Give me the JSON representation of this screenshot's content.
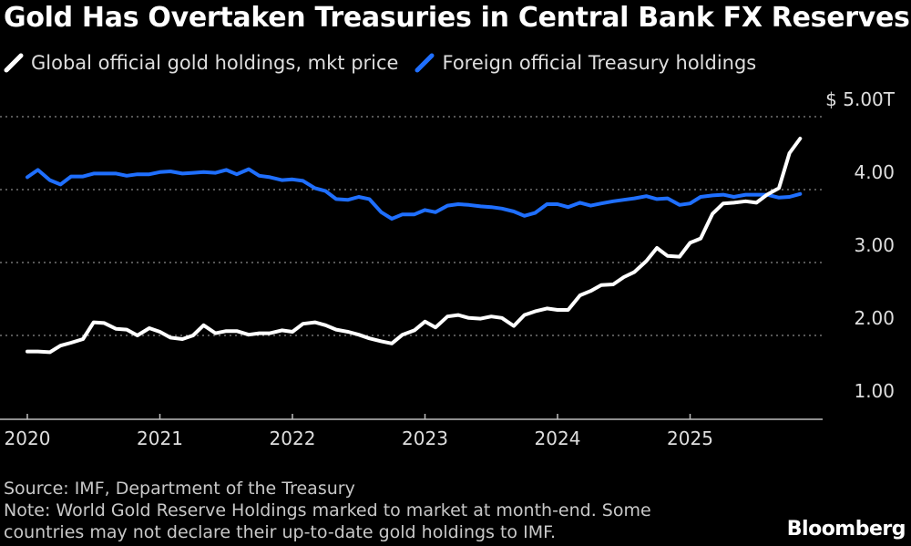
{
  "title": "Gold Has Overtaken Treasuries in Central Bank FX Reserves",
  "legend": [
    {
      "label": "Global official gold holdings, mkt price",
      "color": "#ffffff"
    },
    {
      "label": "Foreign official Treasury holdings",
      "color": "#1f6fff"
    }
  ],
  "footer": {
    "source": "Source: IMF, Department of the Treasury",
    "note_line1": "Note: World Gold Reserve Holdings marked to market at month-end. Some",
    "note_line2": "countries may not declare their up-to-date gold holdings to IMF."
  },
  "brand": "Bloomberg",
  "chart_data": {
    "type": "line",
    "title": "Gold Has Overtaken Treasuries in Central Bank FX Reserves",
    "ylabel": "",
    "xlabel": "",
    "ylim": [
      0.8,
      5.0
    ],
    "xlim": [
      2020.0,
      2025.95
    ],
    "y_ticks": [
      1.0,
      2.0,
      3.0,
      4.0,
      5.0
    ],
    "y_tick_labels": [
      "1.00",
      "2.00",
      "3.00",
      "4.00",
      "$ 5.00T"
    ],
    "x_ticks": [
      2020,
      2021,
      2022,
      2023,
      2024,
      2025
    ],
    "x_tick_labels": [
      "2020",
      "2021",
      "2022",
      "2023",
      "2024",
      "2025"
    ],
    "grid": "horizontal dotted",
    "legend_position": "top",
    "series": [
      {
        "name": "Global official gold holdings, mkt price",
        "color": "#ffffff",
        "points": [
          [
            2020.0,
            1.78
          ],
          [
            2020.08,
            1.78
          ],
          [
            2020.17,
            1.77
          ],
          [
            2020.25,
            1.86
          ],
          [
            2020.33,
            1.9
          ],
          [
            2020.42,
            1.95
          ],
          [
            2020.5,
            2.18
          ],
          [
            2020.58,
            2.17
          ],
          [
            2020.67,
            2.09
          ],
          [
            2020.75,
            2.08
          ],
          [
            2020.83,
            2.0
          ],
          [
            2020.92,
            2.1
          ],
          [
            2021.0,
            2.05
          ],
          [
            2021.08,
            1.97
          ],
          [
            2021.17,
            1.95
          ],
          [
            2021.25,
            2.0
          ],
          [
            2021.33,
            2.14
          ],
          [
            2021.42,
            2.03
          ],
          [
            2021.5,
            2.06
          ],
          [
            2021.58,
            2.06
          ],
          [
            2021.67,
            2.01
          ],
          [
            2021.75,
            2.03
          ],
          [
            2021.83,
            2.03
          ],
          [
            2021.92,
            2.07
          ],
          [
            2022.0,
            2.05
          ],
          [
            2022.08,
            2.16
          ],
          [
            2022.17,
            2.18
          ],
          [
            2022.25,
            2.14
          ],
          [
            2022.33,
            2.08
          ],
          [
            2022.42,
            2.05
          ],
          [
            2022.5,
            2.01
          ],
          [
            2022.58,
            1.96
          ],
          [
            2022.67,
            1.92
          ],
          [
            2022.75,
            1.89
          ],
          [
            2022.83,
            2.01
          ],
          [
            2022.92,
            2.07
          ],
          [
            2023.0,
            2.19
          ],
          [
            2023.08,
            2.11
          ],
          [
            2023.17,
            2.26
          ],
          [
            2023.25,
            2.28
          ],
          [
            2023.33,
            2.24
          ],
          [
            2023.42,
            2.23
          ],
          [
            2023.5,
            2.26
          ],
          [
            2023.58,
            2.24
          ],
          [
            2023.67,
            2.13
          ],
          [
            2023.75,
            2.28
          ],
          [
            2023.83,
            2.33
          ],
          [
            2023.92,
            2.37
          ],
          [
            2024.0,
            2.35
          ],
          [
            2024.08,
            2.35
          ],
          [
            2024.17,
            2.55
          ],
          [
            2024.25,
            2.61
          ],
          [
            2024.33,
            2.69
          ],
          [
            2024.42,
            2.7
          ],
          [
            2024.5,
            2.8
          ],
          [
            2024.58,
            2.87
          ],
          [
            2024.67,
            3.02
          ],
          [
            2024.75,
            3.2
          ],
          [
            2024.83,
            3.09
          ],
          [
            2024.92,
            3.08
          ],
          [
            2025.0,
            3.27
          ],
          [
            2025.08,
            3.33
          ],
          [
            2025.17,
            3.67
          ],
          [
            2025.25,
            3.81
          ],
          [
            2025.33,
            3.82
          ],
          [
            2025.42,
            3.84
          ],
          [
            2025.5,
            3.82
          ],
          [
            2025.58,
            3.93
          ],
          [
            2025.67,
            4.02
          ],
          [
            2025.75,
            4.5
          ],
          [
            2025.83,
            4.7
          ]
        ]
      },
      {
        "name": "Foreign official Treasury holdings",
        "color": "#1f6fff",
        "points": [
          [
            2020.0,
            4.17
          ],
          [
            2020.08,
            4.27
          ],
          [
            2020.17,
            4.13
          ],
          [
            2020.25,
            4.07
          ],
          [
            2020.33,
            4.18
          ],
          [
            2020.42,
            4.18
          ],
          [
            2020.5,
            4.22
          ],
          [
            2020.58,
            4.22
          ],
          [
            2020.67,
            4.22
          ],
          [
            2020.75,
            4.19
          ],
          [
            2020.83,
            4.21
          ],
          [
            2020.92,
            4.21
          ],
          [
            2021.0,
            4.24
          ],
          [
            2021.08,
            4.25
          ],
          [
            2021.17,
            4.22
          ],
          [
            2021.25,
            4.23
          ],
          [
            2021.33,
            4.24
          ],
          [
            2021.42,
            4.23
          ],
          [
            2021.5,
            4.27
          ],
          [
            2021.58,
            4.21
          ],
          [
            2021.67,
            4.28
          ],
          [
            2021.75,
            4.19
          ],
          [
            2021.83,
            4.17
          ],
          [
            2021.92,
            4.13
          ],
          [
            2022.0,
            4.14
          ],
          [
            2022.08,
            4.12
          ],
          [
            2022.17,
            4.02
          ],
          [
            2022.25,
            3.98
          ],
          [
            2022.33,
            3.87
          ],
          [
            2022.42,
            3.86
          ],
          [
            2022.5,
            3.9
          ],
          [
            2022.58,
            3.87
          ],
          [
            2022.67,
            3.69
          ],
          [
            2022.75,
            3.6
          ],
          [
            2022.83,
            3.66
          ],
          [
            2022.92,
            3.66
          ],
          [
            2023.0,
            3.72
          ],
          [
            2023.08,
            3.69
          ],
          [
            2023.17,
            3.78
          ],
          [
            2023.25,
            3.8
          ],
          [
            2023.33,
            3.79
          ],
          [
            2023.42,
            3.77
          ],
          [
            2023.5,
            3.76
          ],
          [
            2023.58,
            3.74
          ],
          [
            2023.67,
            3.7
          ],
          [
            2023.75,
            3.64
          ],
          [
            2023.83,
            3.68
          ],
          [
            2023.92,
            3.8
          ],
          [
            2024.0,
            3.8
          ],
          [
            2024.08,
            3.76
          ],
          [
            2024.17,
            3.82
          ],
          [
            2024.25,
            3.78
          ],
          [
            2024.33,
            3.81
          ],
          [
            2024.42,
            3.84
          ],
          [
            2024.5,
            3.86
          ],
          [
            2024.58,
            3.88
          ],
          [
            2024.67,
            3.91
          ],
          [
            2024.75,
            3.87
          ],
          [
            2024.83,
            3.88
          ],
          [
            2024.92,
            3.79
          ],
          [
            2025.0,
            3.81
          ],
          [
            2025.08,
            3.9
          ],
          [
            2025.17,
            3.92
          ],
          [
            2025.25,
            3.93
          ],
          [
            2025.33,
            3.9
          ],
          [
            2025.42,
            3.93
          ],
          [
            2025.5,
            3.93
          ],
          [
            2025.58,
            3.93
          ],
          [
            2025.67,
            3.89
          ],
          [
            2025.75,
            3.9
          ],
          [
            2025.83,
            3.94
          ]
        ]
      }
    ]
  }
}
